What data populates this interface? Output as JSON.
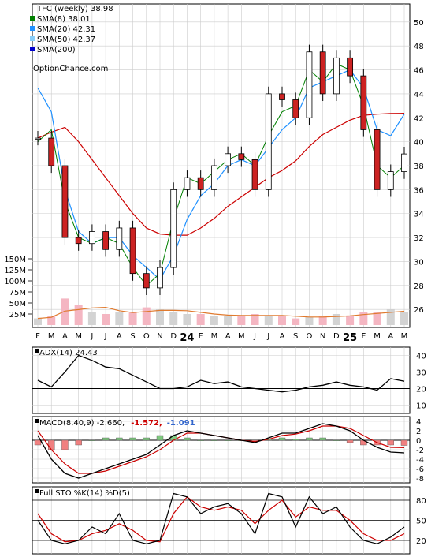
{
  "price_panel": {
    "title": "TFC (weekly) 38.98",
    "legend": [
      {
        "label": "SMA(8) 38.01",
        "color": "#008000"
      },
      {
        "label": "SMA(20) 42.31",
        "color": "#1e90ff"
      },
      {
        "label": "SMA(50) 42.37",
        "color": "#87cefa"
      },
      {
        "label": "SMA(200)",
        "color": "#0000cc"
      }
    ],
    "watermark": "OptionChance.com",
    "y_ticks": [
      "50",
      "48",
      "46",
      "44",
      "42",
      "40",
      "38",
      "36",
      "34",
      "32",
      "30",
      "28",
      "26"
    ],
    "volume_ticks": [
      "150M",
      "125M",
      "100M",
      "75M",
      "50M",
      "25M"
    ]
  },
  "x_axis": {
    "labels": [
      "F",
      "M",
      "A",
      "M",
      "J",
      "J",
      "A",
      "S",
      "O",
      "N",
      "D",
      "24",
      "F",
      "M",
      "A",
      "M",
      "J",
      "J",
      "A",
      "S",
      "O",
      "N",
      "D",
      "25",
      "F",
      "M",
      "A",
      "M"
    ]
  },
  "adx_panel": {
    "title": "ADX(14) 24.43",
    "y_ticks": [
      "40",
      "30",
      "20",
      "10"
    ]
  },
  "macd_panel": {
    "title": "MACD(8,40,9) -2.660,",
    "v1": "-1.572,",
    "v1_color": "#cc0000",
    "v2": "-1.091",
    "v2_color": "#3366cc",
    "y_ticks": [
      "4",
      "2",
      "0",
      "-2",
      "-4",
      "-6",
      "-8"
    ]
  },
  "sto_panel": {
    "title": "Full STO %K(14) %D(5)",
    "y_ticks": [
      "80",
      "50",
      "20"
    ]
  },
  "chart_data": {
    "type": "line",
    "symbol": "TFC",
    "interval": "weekly",
    "x": [
      "F",
      "M",
      "A",
      "M",
      "J",
      "J",
      "A",
      "S",
      "O",
      "N",
      "D",
      "24",
      "F",
      "M",
      "A",
      "M",
      "J",
      "J",
      "A",
      "S",
      "O",
      "N",
      "D",
      "25",
      "F",
      "M",
      "A",
      "M"
    ],
    "close": [
      40.3,
      38.0,
      32.0,
      31.5,
      32.5,
      31.0,
      32.8,
      29.0,
      27.8,
      29.5,
      36.0,
      37.0,
      36.0,
      38.0,
      39.0,
      38.5,
      36.0,
      44.0,
      43.5,
      42.0,
      47.5,
      44.0,
      47.0,
      45.5,
      41.0,
      36.0,
      37.5,
      38.98
    ],
    "sma8": [
      40.0,
      41.0,
      35.0,
      32.0,
      31.5,
      32.0,
      31.5,
      29.5,
      28.0,
      29.0,
      33.5,
      37.0,
      36.5,
      37.5,
      38.5,
      39.0,
      38.0,
      40.5,
      42.5,
      43.0,
      46.0,
      45.0,
      46.5,
      46.0,
      43.0,
      38.0,
      37.0,
      38.01
    ],
    "sma20": [
      44.5,
      42.5,
      36.0,
      32.5,
      31.5,
      32.0,
      32.0,
      30.5,
      29.5,
      28.5,
      30.5,
      33.5,
      35.5,
      36.5,
      38.0,
      38.5,
      38.0,
      39.5,
      41.0,
      42.0,
      44.5,
      45.0,
      45.5,
      46.0,
      44.5,
      41.0,
      40.5,
      42.31
    ],
    "sma50": [
      40.3,
      40.8,
      41.2,
      40.0,
      38.5,
      37.0,
      35.5,
      34.0,
      32.8,
      32.3,
      32.2,
      32.2,
      32.8,
      33.6,
      34.6,
      35.4,
      36.2,
      37.0,
      37.6,
      38.4,
      39.6,
      40.6,
      41.2,
      41.8,
      42.2,
      42.3,
      42.35,
      42.37
    ],
    "volume_m": [
      15,
      20,
      60,
      45,
      30,
      25,
      30,
      28,
      40,
      35,
      30,
      25,
      25,
      20,
      20,
      22,
      25,
      20,
      20,
      15,
      18,
      20,
      25,
      20,
      30,
      30,
      35,
      30
    ],
    "adx": [
      25,
      21,
      30,
      40,
      37,
      33,
      32,
      28,
      24,
      20,
      20,
      21,
      25,
      23,
      24,
      21,
      20,
      19,
      18,
      19,
      21,
      22,
      24,
      22,
      21,
      19,
      26,
      24.43
    ],
    "macd": [
      1,
      -4,
      -7,
      -8,
      -7,
      -6,
      -5,
      -4,
      -3,
      -1,
      1,
      2,
      1.5,
      1,
      0.5,
      0,
      -0.5,
      0.5,
      1.5,
      1.5,
      2.5,
      3.5,
      3,
      2,
      0,
      -1.5,
      -2.5,
      -2.66
    ],
    "macd_signal": [
      2,
      -2,
      -5,
      -7,
      -7,
      -6.5,
      -5.5,
      -4.5,
      -3.5,
      -2,
      0,
      1.5,
      1.5,
      1,
      0.5,
      0,
      -0.3,
      0.2,
      1,
      1.3,
      2,
      3,
      3,
      2.5,
      1,
      -0.5,
      -1.5,
      -1.572
    ],
    "sto_k": [
      50,
      20,
      15,
      20,
      40,
      30,
      60,
      20,
      15,
      20,
      90,
      85,
      60,
      70,
      75,
      60,
      30,
      90,
      85,
      40,
      85,
      60,
      70,
      40,
      20,
      15,
      25,
      40
    ],
    "sto_d": [
      60,
      30,
      18,
      20,
      30,
      35,
      45,
      35,
      20,
      18,
      60,
      85,
      70,
      65,
      70,
      65,
      45,
      65,
      80,
      55,
      70,
      65,
      65,
      50,
      30,
      20,
      20,
      30
    ],
    "price_ylim": [
      24.5,
      51.5
    ],
    "adx_ylim": [
      5,
      45
    ],
    "macd_ylim": [
      -9,
      5
    ],
    "sto_ylim": [
      0,
      100
    ]
  }
}
